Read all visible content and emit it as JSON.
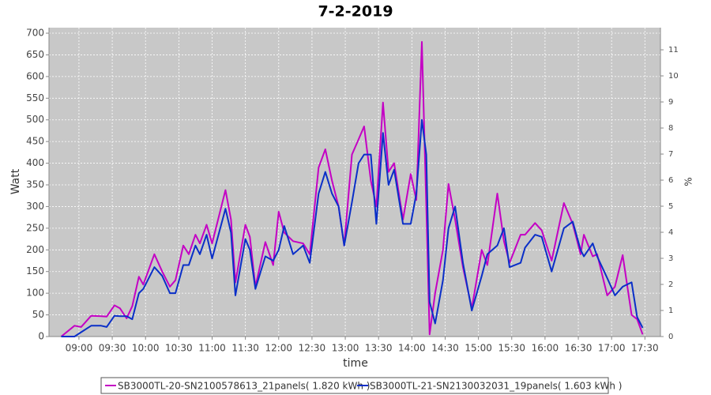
{
  "chart_data": {
    "type": "line",
    "title": "7-2-2019",
    "xlabel": "time",
    "ylabel": "Watt",
    "y2label": "%",
    "x": [
      "08:44",
      "08:56",
      "09:02",
      "09:11",
      "09:20",
      "09:25",
      "09:32",
      "09:37",
      "09:43",
      "09:48",
      "09:54",
      "09:58",
      "10:08",
      "10:15",
      "10:22",
      "10:27",
      "10:34",
      "10:39",
      "10:45",
      "10:49",
      "10:55",
      "11:00",
      "11:12",
      "11:17",
      "11:21",
      "11:30",
      "11:34",
      "11:39",
      "11:48",
      "11:55",
      "12:00",
      "12:05",
      "12:13",
      "12:22",
      "12:28",
      "12:36",
      "12:42",
      "12:48",
      "12:54",
      "12:59",
      "13:06",
      "13:12",
      "13:17",
      "13:23",
      "13:28",
      "13:34",
      "13:39",
      "13:44",
      "13:52",
      "13:59",
      "14:04",
      "14:09",
      "14:13",
      "14:16",
      "14:21",
      "14:28",
      "14:33",
      "14:39",
      "14:46",
      "14:54",
      "15:03",
      "15:08",
      "15:17",
      "15:23",
      "15:28",
      "15:38",
      "15:42",
      "15:51",
      "15:57",
      "16:06",
      "16:17",
      "16:25",
      "16:32",
      "16:35",
      "16:43",
      "16:47",
      "16:56",
      "17:03",
      "17:10",
      "17:18",
      "17:23",
      "17:28"
    ],
    "series": [
      {
        "name": "SB3000TL-20-SN2100578613_21panels( 1.820 kWh )",
        "color": "#c400c4",
        "values": [
          0,
          25,
          22,
          48,
          47,
          46,
          72,
          65,
          42,
          70,
          138,
          120,
          190,
          150,
          115,
          130,
          210,
          190,
          235,
          215,
          258,
          215,
          338,
          270,
          125,
          258,
          230,
          115,
          218,
          165,
          288,
          240,
          220,
          215,
          190,
          390,
          432,
          360,
          300,
          210,
          420,
          455,
          485,
          360,
          300,
          540,
          380,
          400,
          270,
          375,
          315,
          680,
          300,
          5,
          100,
          200,
          352,
          270,
          160,
          65,
          200,
          165,
          330,
          220,
          170,
          235,
          235,
          262,
          245,
          175,
          308,
          260,
          190,
          235,
          185,
          190,
          95,
          115,
          188,
          50,
          40,
          5
        ]
      },
      {
        "name": "SB3000TL-21-SN2130032031_19panels( 1.603 kWh )",
        "color": "#0a2fc8",
        "values": [
          0,
          0,
          10,
          25,
          25,
          22,
          48,
          47,
          47,
          40,
          100,
          110,
          160,
          140,
          100,
          100,
          165,
          165,
          210,
          190,
          235,
          180,
          295,
          240,
          95,
          225,
          200,
          110,
          185,
          175,
          200,
          255,
          190,
          210,
          170,
          330,
          380,
          330,
          300,
          210,
          310,
          400,
          420,
          420,
          260,
          470,
          350,
          385,
          260,
          260,
          330,
          500,
          420,
          80,
          30,
          130,
          250,
          300,
          170,
          60,
          140,
          190,
          210,
          250,
          160,
          170,
          205,
          235,
          230,
          150,
          250,
          265,
          200,
          185,
          215,
          185,
          135,
          95,
          115,
          125,
          45,
          20
        ]
      }
    ],
    "xlim": [
      "08:33",
      "17:44"
    ],
    "xticks": [
      "09:00",
      "09:30",
      "10:00",
      "10:30",
      "11:00",
      "11:30",
      "12:00",
      "12:30",
      "13:00",
      "13:30",
      "14:00",
      "14:30",
      "15:00",
      "15:30",
      "16:00",
      "16:30",
      "17:00",
      "17:30"
    ],
    "ylim": [
      0,
      712.8
    ],
    "yticks": [
      0,
      50,
      100,
      150,
      200,
      250,
      300,
      350,
      400,
      450,
      500,
      550,
      600,
      650,
      700
    ],
    "y2lim": [
      0,
      11.85
    ],
    "y2ticks": [
      0,
      1,
      2,
      3,
      4,
      5,
      6,
      7,
      8,
      9,
      10,
      11
    ],
    "grid": true,
    "legend": "bottom"
  }
}
